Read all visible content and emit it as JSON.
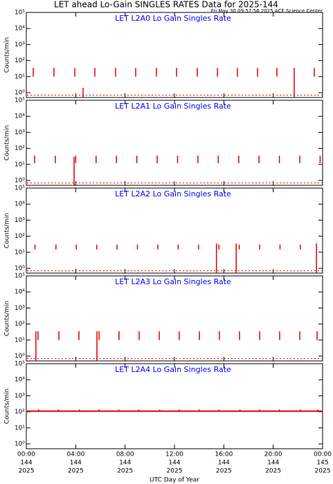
{
  "page": {
    "title": "LET ahead Lo-Gain SINGLES RATES Data for 2025-144",
    "subtitle": "Fri May 30 09:57:56 2025 ACE Science Center"
  },
  "chart_data": [
    {
      "type": "spike",
      "title": "LET L2A0 Lo Gain Singles Rate",
      "ylabel": "Counts/min",
      "color": "#e00000",
      "log": true,
      "xlim": [
        0,
        24
      ],
      "xticks": [
        0,
        4,
        8,
        12,
        16,
        20,
        24
      ],
      "ylim": [
        0.5,
        100000
      ],
      "yticks": [
        {
          "value": 1,
          "label": "10⁰"
        },
        {
          "value": 10,
          "label": "10¹"
        },
        {
          "value": 100,
          "label": "10²"
        },
        {
          "value": 1000,
          "label": "10³"
        },
        {
          "value": 10000,
          "label": "10⁴"
        },
        {
          "value": 100000,
          "label": "10⁵"
        }
      ],
      "level": 0.7,
      "x": [
        0.56,
        2.24,
        3.93,
        4.6,
        5.55,
        7.23,
        8.86,
        10.54,
        12.17,
        13.85,
        15.48,
        17.1,
        18.73,
        20.3,
        21.7,
        23.33
      ],
      "values": [
        35,
        35,
        35,
        2,
        35,
        35,
        35,
        35,
        35,
        35,
        35,
        35,
        35,
        35,
        35,
        35
      ],
      "low_values": [
        10,
        10,
        10,
        0.5,
        10,
        10,
        10,
        10,
        10,
        10,
        10,
        10,
        10,
        10,
        0.5,
        10
      ]
    },
    {
      "type": "spike",
      "title": "LET L2A1 Lo Gain Singles Rate",
      "ylabel": "Counts/min",
      "color": "#e00000",
      "log": true,
      "xlim": [
        0,
        24
      ],
      "xticks": [
        0,
        4,
        8,
        12,
        16,
        20,
        24
      ],
      "ylim": [
        0.5,
        100000
      ],
      "yticks": [
        {
          "value": 1,
          "label": "10⁰"
        },
        {
          "value": 10,
          "label": "10¹"
        },
        {
          "value": 100,
          "label": "10²"
        },
        {
          "value": 1000,
          "label": "10³"
        },
        {
          "value": 10000,
          "label": "10⁴"
        },
        {
          "value": 100000,
          "label": "10⁵"
        }
      ],
      "level": 0.7,
      "x": [
        0.67,
        2.35,
        3.87,
        4.0,
        5.65,
        7.3,
        8.95,
        10.6,
        12.25,
        13.9,
        15.55,
        17.2,
        18.85,
        20.5,
        22.15,
        23.8
      ],
      "values": [
        35,
        35,
        30,
        35,
        35,
        35,
        35,
        35,
        35,
        35,
        35,
        35,
        35,
        35,
        35,
        35
      ],
      "low_values": [
        12,
        12,
        0.5,
        12,
        12,
        12,
        12,
        12,
        12,
        12,
        12,
        12,
        12,
        12,
        12,
        12
      ]
    },
    {
      "type": "spike",
      "title": "LET L2A2 Lo Gain Singles Rate",
      "ylabel": "Counts/min",
      "color": "#e00000",
      "log": true,
      "xlim": [
        0,
        24
      ],
      "xticks": [
        0,
        4,
        8,
        12,
        16,
        20,
        24
      ],
      "ylim": [
        0.5,
        100000
      ],
      "yticks": [
        {
          "value": 1,
          "label": "10⁰"
        },
        {
          "value": 10,
          "label": "10¹"
        },
        {
          "value": 100,
          "label": "10²"
        },
        {
          "value": 1000,
          "label": "10³"
        },
        {
          "value": 10000,
          "label": "10⁴"
        },
        {
          "value": 100000,
          "label": "10⁵"
        }
      ],
      "level": 0.7,
      "x": [
        0.7,
        2.4,
        4.05,
        5.7,
        7.35,
        9.0,
        10.65,
        12.3,
        13.95,
        15.4,
        15.6,
        17.0,
        17.25,
        18.9,
        20.55,
        22.2,
        23.5
      ],
      "values": [
        30,
        30,
        30,
        30,
        30,
        30,
        30,
        30,
        30,
        35,
        30,
        35,
        30,
        30,
        30,
        30,
        35
      ],
      "low_values": [
        15,
        15,
        15,
        15,
        15,
        15,
        15,
        15,
        15,
        0.5,
        15,
        0.5,
        15,
        15,
        15,
        15,
        0.5
      ]
    },
    {
      "type": "spike",
      "title": "LET L2A3 Lo Gain Singles Rate",
      "ylabel": "Counts/min",
      "color": "#e00000",
      "log": true,
      "xlim": [
        0,
        24
      ],
      "xticks": [
        0,
        4,
        8,
        12,
        16,
        20,
        24
      ],
      "ylim": [
        0.5,
        100000
      ],
      "yticks": [
        {
          "value": 1,
          "label": "10⁰"
        },
        {
          "value": 10,
          "label": "10¹"
        },
        {
          "value": 100,
          "label": "10²"
        },
        {
          "value": 1000,
          "label": "10³"
        },
        {
          "value": 10000,
          "label": "10⁴"
        },
        {
          "value": 100000,
          "label": "10⁵"
        }
      ],
      "level": 0.7,
      "x": [
        0.78,
        0.95,
        2.64,
        4.26,
        5.72,
        5.89,
        7.51,
        9.14,
        10.77,
        12.39,
        14.02,
        15.64,
        17.27,
        18.9,
        20.52,
        22.15,
        23.55
      ],
      "values": [
        35,
        35,
        35,
        35,
        35,
        35,
        35,
        35,
        35,
        35,
        35,
        35,
        35,
        35,
        35,
        35,
        35
      ],
      "low_values": [
        0.5,
        10,
        10,
        10,
        0.5,
        10,
        10,
        10,
        10,
        10,
        10,
        10,
        10,
        10,
        10,
        10,
        10
      ]
    },
    {
      "type": "spike",
      "title": "LET L2A4 Lo Gain Singles Rate",
      "ylabel": "Counts/min",
      "color": "#e00000",
      "log": true,
      "xlim": [
        0,
        24
      ],
      "xticks": [
        {
          "value": 0,
          "label": "00:00"
        },
        {
          "value": 4,
          "label": "04:00"
        },
        {
          "value": 8,
          "label": "08:00"
        },
        {
          "value": 12,
          "label": "12:00"
        },
        {
          "value": 16,
          "label": "16:00"
        },
        {
          "value": 20,
          "label": "20:00"
        },
        {
          "value": 24,
          "label": "00:00"
        }
      ],
      "xtick_days": [
        "144",
        "144",
        "144",
        "144",
        "144",
        "144",
        "145"
      ],
      "xtick_years": [
        "2025",
        "2025",
        "2025",
        "2025",
        "2025",
        "2025",
        "2025"
      ],
      "xlabel": "UTC Day of Year",
      "ylim": [
        0.5,
        100000
      ],
      "yticks": [
        {
          "value": 1,
          "label": "10⁰"
        },
        {
          "value": 10,
          "label": "10¹"
        },
        {
          "value": 100,
          "label": "10²"
        },
        {
          "value": 1000,
          "label": "10³"
        },
        {
          "value": 10000,
          "label": "10⁴"
        },
        {
          "value": 100000,
          "label": "10⁵"
        }
      ],
      "level": 110,
      "x": [
        1.0,
        2.6,
        4.3,
        5.9,
        7.5,
        9.1,
        10.8,
        12.4,
        14.0,
        15.6,
        17.3,
        18.9,
        20.5,
        22.2,
        23.6
      ],
      "values": [
        140,
        140,
        140,
        140,
        140,
        140,
        140,
        140,
        140,
        140,
        140,
        140,
        140,
        140,
        140
      ],
      "low_values": [
        100,
        100,
        100,
        100,
        100,
        100,
        100,
        100,
        100,
        100,
        100,
        100,
        100,
        100,
        100
      ]
    }
  ]
}
